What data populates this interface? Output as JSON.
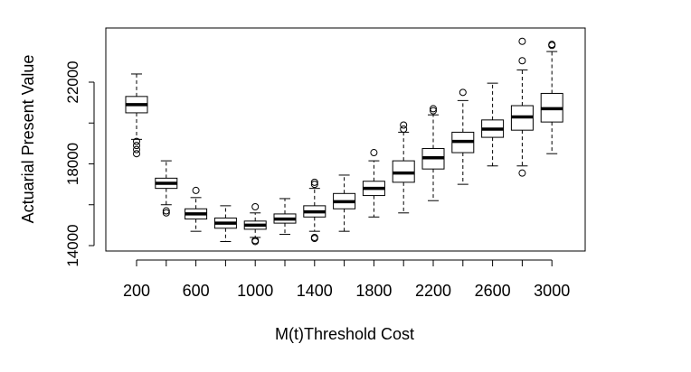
{
  "chart_data": {
    "type": "boxplot",
    "title": "",
    "xlabel": "M(t)Threshold Cost",
    "ylabel": "Actuarial Present Value",
    "ylim": [
      13600,
      24300
    ],
    "yticks": [
      14000,
      18000,
      22000
    ],
    "yticks_minor": [
      16000,
      20000
    ],
    "x_tick_labels": [
      "200",
      "600",
      "1000",
      "1400",
      "1800",
      "2200",
      "2600",
      "3000"
    ],
    "grid": false,
    "categories": [
      "200",
      "400",
      "600",
      "800",
      "1000",
      "1200",
      "1400",
      "1600",
      "1800",
      "2000",
      "2200",
      "2400",
      "2600",
      "2800",
      "3000"
    ],
    "boxes": [
      {
        "x": "200",
        "whisker_low": 19200,
        "q1": 20500,
        "median": 20900,
        "q3": 21300,
        "whisker_high": 22400,
        "outliers": [
          19100,
          18900,
          18700,
          18500
        ]
      },
      {
        "x": "400",
        "whisker_low": 16000,
        "q1": 16800,
        "median": 17050,
        "q3": 17300,
        "whisker_high": 18150,
        "outliers": [
          15700,
          15600
        ]
      },
      {
        "x": "600",
        "whisker_low": 14700,
        "q1": 15300,
        "median": 15550,
        "q3": 15800,
        "whisker_high": 16350,
        "outliers": [
          16700
        ]
      },
      {
        "x": "800",
        "whisker_low": 14200,
        "q1": 14850,
        "median": 15100,
        "q3": 15350,
        "whisker_high": 15950,
        "outliers": []
      },
      {
        "x": "1000",
        "whisker_low": 14400,
        "q1": 14800,
        "median": 15000,
        "q3": 15200,
        "whisker_high": 15600,
        "outliers": [
          15900,
          14250,
          14200
        ]
      },
      {
        "x": "1200",
        "whisker_low": 14550,
        "q1": 15100,
        "median": 15300,
        "q3": 15550,
        "whisker_high": 16300,
        "outliers": []
      },
      {
        "x": "1400",
        "whisker_low": 14700,
        "q1": 15400,
        "median": 15650,
        "q3": 15950,
        "whisker_high": 16800,
        "outliers": [
          17100,
          17000,
          14400,
          14350
        ]
      },
      {
        "x": "1600",
        "whisker_low": 14700,
        "q1": 15800,
        "median": 16150,
        "q3": 16550,
        "whisker_high": 17450,
        "outliers": []
      },
      {
        "x": "1800",
        "whisker_low": 15400,
        "q1": 16450,
        "median": 16800,
        "q3": 17150,
        "whisker_high": 18150,
        "outliers": [
          18550
        ]
      },
      {
        "x": "2000",
        "whisker_low": 15600,
        "q1": 17100,
        "median": 17550,
        "q3": 18150,
        "whisker_high": 19550,
        "outliers": [
          19900,
          19700
        ]
      },
      {
        "x": "2200",
        "whisker_low": 16200,
        "q1": 17750,
        "median": 18300,
        "q3": 18750,
        "whisker_high": 20400,
        "outliers": [
          20700,
          20600
        ]
      },
      {
        "x": "2400",
        "whisker_low": 17000,
        "q1": 18550,
        "median": 19100,
        "q3": 19550,
        "whisker_high": 21100,
        "outliers": [
          21500
        ]
      },
      {
        "x": "2600",
        "whisker_low": 17900,
        "q1": 19300,
        "median": 19700,
        "q3": 20150,
        "whisker_high": 21950,
        "outliers": []
      },
      {
        "x": "2800",
        "whisker_low": 17900,
        "q1": 19650,
        "median": 20300,
        "q3": 20850,
        "whisker_high": 22600,
        "outliers": [
          23050,
          24000,
          17550
        ]
      },
      {
        "x": "3000",
        "whisker_low": 18500,
        "q1": 20050,
        "median": 20700,
        "q3": 21450,
        "whisker_high": 23500,
        "outliers": [
          23800,
          23850
        ]
      }
    ]
  }
}
